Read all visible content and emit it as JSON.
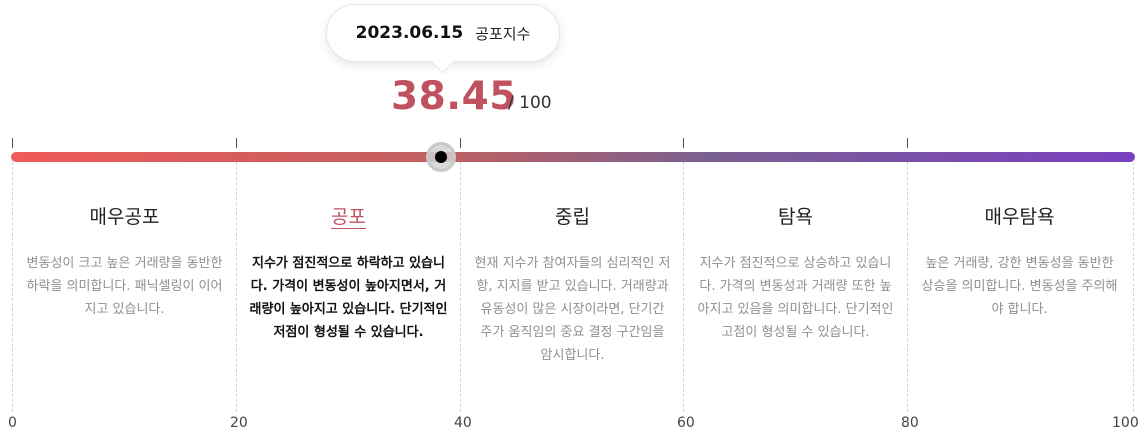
{
  "tooltip": {
    "date": "2023.06.15",
    "label": "공포지수"
  },
  "index": {
    "value": "38.45",
    "max": "/ 100",
    "fraction": 0.3845
  },
  "colors": {
    "accent": "#c0525f",
    "gradient_start": "#f05a5a",
    "gradient_end": "#7b3fc0"
  },
  "segments": [
    {
      "title": "매우공포",
      "desc": "변동성이 크고 높은 거래량을 동반한 하락을 의미합니다. 패닉셀링이 이어지고 있습니다.",
      "active": false
    },
    {
      "title": "공포",
      "desc": "지수가 점진적으로 하락하고 있습니다. 가격이 변동성이 높아지면서, 거래량이 높아지고 있습니다. 단기적인 저점이 형성될 수 있습니다.",
      "active": true
    },
    {
      "title": "중립",
      "desc": "현재 지수가 참여자들의 심리적인 저항, 지지를 받고 있습니다. 거래량과 유동성이 많은 시장이라면, 단기간 주가 움직임의 중요 결정 구간임을 암시합니다.",
      "active": false
    },
    {
      "title": "탐욕",
      "desc": "지수가 점진적으로 상승하고 있습니다. 가격의 변동성과 거래량 또한 높아지고 있음을 의미합니다. 단기적인 고점이 형성될 수 있습니다.",
      "active": false
    },
    {
      "title": "매우탐욕",
      "desc": "높은 거래량, 강한 변동성을 동반한 상승을 의미합니다. 변동성을 주의해야 합니다.",
      "active": false
    }
  ],
  "scale": [
    "0",
    "20",
    "40",
    "60",
    "80",
    "100"
  ]
}
